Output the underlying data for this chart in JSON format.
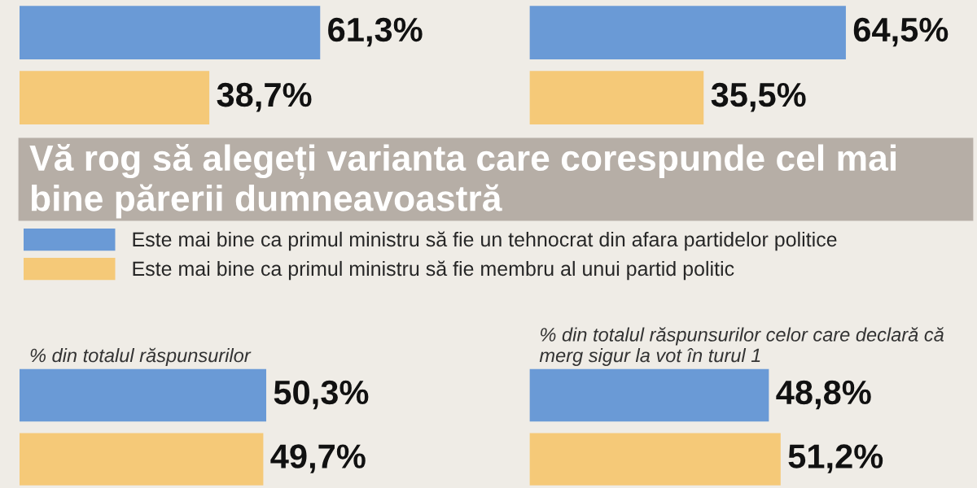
{
  "chart_data": [
    {
      "type": "bar",
      "orientation": "horizontal",
      "categories": [
        null
      ],
      "series": [
        {
          "color": "#6a9ad6",
          "values": [
            61.3
          ],
          "value_labels": [
            "61,3%"
          ]
        },
        {
          "color": "#f5c978",
          "values": [
            38.7
          ],
          "value_labels": [
            "38,7%"
          ]
        }
      ]
    },
    {
      "type": "bar",
      "orientation": "horizontal",
      "categories": [
        null
      ],
      "series": [
        {
          "color": "#6a9ad6",
          "values": [
            64.5
          ],
          "value_labels": [
            "64,5%"
          ]
        },
        {
          "color": "#f5c978",
          "values": [
            35.5
          ],
          "value_labels": [
            "35,5%"
          ]
        }
      ]
    },
    {
      "type": "bar",
      "orientation": "horizontal",
      "categories": [
        null
      ],
      "title": "Vă rog să alegeți varianta care corespunde cel mai bine părerii dumneavoastră",
      "subtitle": "% din totalul răspunsurilor",
      "legend": "top",
      "series": [
        {
          "name": "Este mai bine ca primul ministru să fie un tehnocrat din afara partidelor politice",
          "color": "#6a9ad6",
          "values": [
            50.3
          ],
          "value_labels": [
            "50,3%"
          ]
        },
        {
          "name": "Este mai bine ca primul ministru să fie membru al unui partid politic",
          "color": "#f5c978",
          "values": [
            49.7
          ],
          "value_labels": [
            "49,7%"
          ]
        }
      ]
    },
    {
      "type": "bar",
      "orientation": "horizontal",
      "categories": [
        null
      ],
      "subtitle": "% din totalul răspunsurilor celor care declară că merg sigur la vot în turul 1",
      "series": [
        {
          "color": "#6a9ad6",
          "values": [
            48.8
          ],
          "value_labels": [
            "48,8%"
          ]
        },
        {
          "color": "#f5c978",
          "values": [
            51.2
          ],
          "value_labels": [
            "51,2%"
          ]
        }
      ]
    }
  ]
}
